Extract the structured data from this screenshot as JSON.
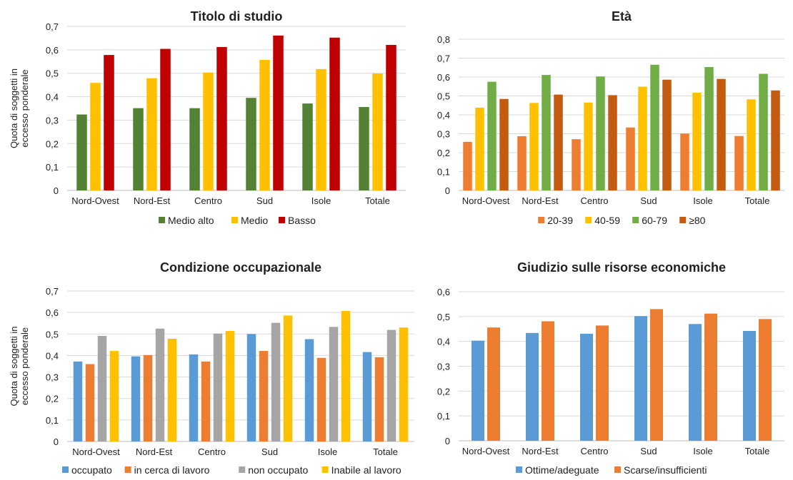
{
  "chart_data": [
    {
      "type": "bar",
      "title": "Titolo di studio",
      "ylabel": "Quota di soggetti in eccesso ponderale",
      "ylim": [
        0,
        0.7
      ],
      "yticks": [
        0,
        0.1,
        0.2,
        0.3,
        0.4,
        0.5,
        0.6,
        0.7
      ],
      "ytick_labels": [
        "0",
        "0,1",
        "0,2",
        "0,3",
        "0,4",
        "0,5",
        "0,6",
        "0,7"
      ],
      "grid": true,
      "legend": "bottom",
      "categories": [
        "Nord-Ovest",
        "Nord-Est",
        "Centro",
        "Sud",
        "Isole",
        "Totale"
      ],
      "series": [
        {
          "name": "Medio alto",
          "color": "#548235",
          "values": [
            0.324,
            0.351,
            0.351,
            0.395,
            0.371,
            0.356
          ]
        },
        {
          "name": "Medio",
          "color": "#FFC000",
          "values": [
            0.459,
            0.479,
            0.503,
            0.557,
            0.518,
            0.499
          ]
        },
        {
          "name": "Basso",
          "color": "#C00000",
          "values": [
            0.578,
            0.604,
            0.612,
            0.661,
            0.652,
            0.621
          ]
        }
      ]
    },
    {
      "type": "bar",
      "title": "Età",
      "ylabel": "",
      "ylim": [
        0,
        0.8
      ],
      "yticks": [
        0,
        0.1,
        0.2,
        0.3,
        0.4,
        0.5,
        0.6,
        0.7,
        0.8
      ],
      "ytick_labels": [
        "0",
        "0,1",
        "0,2",
        "0,3",
        "0,4",
        "0,5",
        "0,6",
        "0,7",
        "0,8"
      ],
      "grid": true,
      "legend": "bottom",
      "categories": [
        "Nord-Ovest",
        "Nord-Est",
        "Centro",
        "Sud",
        "Isole",
        "Totale"
      ],
      "series": [
        {
          "name": "20-39",
          "color": "#ED7D31",
          "values": [
            0.257,
            0.287,
            0.271,
            0.333,
            0.301,
            0.288
          ]
        },
        {
          "name": "40-59",
          "color": "#FFC000",
          "values": [
            0.438,
            0.463,
            0.465,
            0.549,
            0.517,
            0.482
          ]
        },
        {
          "name": "60-79",
          "color": "#70AD47",
          "values": [
            0.575,
            0.611,
            0.603,
            0.665,
            0.653,
            0.617
          ]
        },
        {
          "name": "≥80",
          "color": "#C55A11",
          "values": [
            0.484,
            0.507,
            0.504,
            0.586,
            0.59,
            0.529
          ]
        }
      ]
    },
    {
      "type": "bar",
      "title": "Condizione occupazionale",
      "ylabel": "Quota di soggetti in eccesso ponderale",
      "ylim": [
        0,
        0.7
      ],
      "yticks": [
        0,
        0.1,
        0.2,
        0.3,
        0.4,
        0.5,
        0.6,
        0.7
      ],
      "ytick_labels": [
        "0",
        "0,1",
        "0,2",
        "0,3",
        "0,4",
        "0,5",
        "0,6",
        "0,7"
      ],
      "grid": true,
      "legend": "bottom",
      "categories": [
        "Nord-Ovest",
        "Nord-Est",
        "Centro",
        "Sud",
        "Isole",
        "Totale"
      ],
      "series": [
        {
          "name": "occupato",
          "color": "#5B9BD5",
          "values": [
            0.372,
            0.396,
            0.405,
            0.5,
            0.476,
            0.416
          ]
        },
        {
          "name": "in cerca di lavoro",
          "color": "#ED7D31",
          "values": [
            0.36,
            0.402,
            0.372,
            0.421,
            0.389,
            0.392
          ]
        },
        {
          "name": "non occupato",
          "color": "#A5A5A5",
          "values": [
            0.491,
            0.525,
            0.502,
            0.552,
            0.533,
            0.519
          ]
        },
        {
          "name": "Inabile al lavoro",
          "color": "#FFC000",
          "values": [
            0.421,
            0.478,
            0.514,
            0.586,
            0.607,
            0.53
          ]
        }
      ]
    },
    {
      "type": "bar",
      "title": "Giudizio sulle risorse economiche",
      "ylabel": "",
      "ylim": [
        0,
        0.6
      ],
      "yticks": [
        0,
        0.1,
        0.2,
        0.3,
        0.4,
        0.5,
        0.6
      ],
      "ytick_labels": [
        "0",
        "0,1",
        "0,2",
        "0,3",
        "0,4",
        "0,5",
        "0,6"
      ],
      "grid": true,
      "legend": "bottom",
      "categories": [
        "Nord-Ovest",
        "Nord-Est",
        "Centro",
        "Sud",
        "Isole",
        "Totale"
      ],
      "series": [
        {
          "name": "Ottime/adeguate",
          "color": "#5B9BD5",
          "values": [
            0.403,
            0.434,
            0.431,
            0.502,
            0.47,
            0.442
          ]
        },
        {
          "name": "Scarse/insufficienti",
          "color": "#ED7D31",
          "values": [
            0.456,
            0.481,
            0.464,
            0.53,
            0.512,
            0.49
          ]
        }
      ]
    }
  ]
}
